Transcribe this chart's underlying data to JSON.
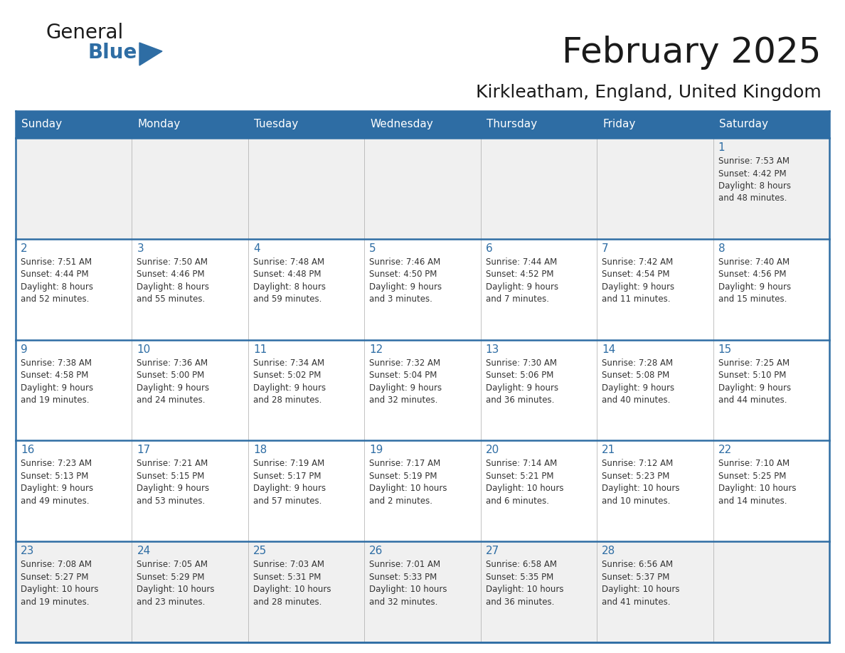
{
  "title": "February 2025",
  "subtitle": "Kirkleatham, England, United Kingdom",
  "header_bg": "#2E6DA4",
  "header_text_color": "#FFFFFF",
  "cell_bg_white": "#FFFFFF",
  "cell_bg_gray": "#F0F0F0",
  "day_number_color": "#2E6DA4",
  "info_text_color": "#333333",
  "border_color": "#2E6DA4",
  "grid_line_color": "#AAAAAA",
  "days_of_week": [
    "Sunday",
    "Monday",
    "Tuesday",
    "Wednesday",
    "Thursday",
    "Friday",
    "Saturday"
  ],
  "weeks": [
    [
      {
        "day": null,
        "info": ""
      },
      {
        "day": null,
        "info": ""
      },
      {
        "day": null,
        "info": ""
      },
      {
        "day": null,
        "info": ""
      },
      {
        "day": null,
        "info": ""
      },
      {
        "day": null,
        "info": ""
      },
      {
        "day": 1,
        "info": "Sunrise: 7:53 AM\nSunset: 4:42 PM\nDaylight: 8 hours\nand 48 minutes."
      }
    ],
    [
      {
        "day": 2,
        "info": "Sunrise: 7:51 AM\nSunset: 4:44 PM\nDaylight: 8 hours\nand 52 minutes."
      },
      {
        "day": 3,
        "info": "Sunrise: 7:50 AM\nSunset: 4:46 PM\nDaylight: 8 hours\nand 55 minutes."
      },
      {
        "day": 4,
        "info": "Sunrise: 7:48 AM\nSunset: 4:48 PM\nDaylight: 8 hours\nand 59 minutes."
      },
      {
        "day": 5,
        "info": "Sunrise: 7:46 AM\nSunset: 4:50 PM\nDaylight: 9 hours\nand 3 minutes."
      },
      {
        "day": 6,
        "info": "Sunrise: 7:44 AM\nSunset: 4:52 PM\nDaylight: 9 hours\nand 7 minutes."
      },
      {
        "day": 7,
        "info": "Sunrise: 7:42 AM\nSunset: 4:54 PM\nDaylight: 9 hours\nand 11 minutes."
      },
      {
        "day": 8,
        "info": "Sunrise: 7:40 AM\nSunset: 4:56 PM\nDaylight: 9 hours\nand 15 minutes."
      }
    ],
    [
      {
        "day": 9,
        "info": "Sunrise: 7:38 AM\nSunset: 4:58 PM\nDaylight: 9 hours\nand 19 minutes."
      },
      {
        "day": 10,
        "info": "Sunrise: 7:36 AM\nSunset: 5:00 PM\nDaylight: 9 hours\nand 24 minutes."
      },
      {
        "day": 11,
        "info": "Sunrise: 7:34 AM\nSunset: 5:02 PM\nDaylight: 9 hours\nand 28 minutes."
      },
      {
        "day": 12,
        "info": "Sunrise: 7:32 AM\nSunset: 5:04 PM\nDaylight: 9 hours\nand 32 minutes."
      },
      {
        "day": 13,
        "info": "Sunrise: 7:30 AM\nSunset: 5:06 PM\nDaylight: 9 hours\nand 36 minutes."
      },
      {
        "day": 14,
        "info": "Sunrise: 7:28 AM\nSunset: 5:08 PM\nDaylight: 9 hours\nand 40 minutes."
      },
      {
        "day": 15,
        "info": "Sunrise: 7:25 AM\nSunset: 5:10 PM\nDaylight: 9 hours\nand 44 minutes."
      }
    ],
    [
      {
        "day": 16,
        "info": "Sunrise: 7:23 AM\nSunset: 5:13 PM\nDaylight: 9 hours\nand 49 minutes."
      },
      {
        "day": 17,
        "info": "Sunrise: 7:21 AM\nSunset: 5:15 PM\nDaylight: 9 hours\nand 53 minutes."
      },
      {
        "day": 18,
        "info": "Sunrise: 7:19 AM\nSunset: 5:17 PM\nDaylight: 9 hours\nand 57 minutes."
      },
      {
        "day": 19,
        "info": "Sunrise: 7:17 AM\nSunset: 5:19 PM\nDaylight: 10 hours\nand 2 minutes."
      },
      {
        "day": 20,
        "info": "Sunrise: 7:14 AM\nSunset: 5:21 PM\nDaylight: 10 hours\nand 6 minutes."
      },
      {
        "day": 21,
        "info": "Sunrise: 7:12 AM\nSunset: 5:23 PM\nDaylight: 10 hours\nand 10 minutes."
      },
      {
        "day": 22,
        "info": "Sunrise: 7:10 AM\nSunset: 5:25 PM\nDaylight: 10 hours\nand 14 minutes."
      }
    ],
    [
      {
        "day": 23,
        "info": "Sunrise: 7:08 AM\nSunset: 5:27 PM\nDaylight: 10 hours\nand 19 minutes."
      },
      {
        "day": 24,
        "info": "Sunrise: 7:05 AM\nSunset: 5:29 PM\nDaylight: 10 hours\nand 23 minutes."
      },
      {
        "day": 25,
        "info": "Sunrise: 7:03 AM\nSunset: 5:31 PM\nDaylight: 10 hours\nand 28 minutes."
      },
      {
        "day": 26,
        "info": "Sunrise: 7:01 AM\nSunset: 5:33 PM\nDaylight: 10 hours\nand 32 minutes."
      },
      {
        "day": 27,
        "info": "Sunrise: 6:58 AM\nSunset: 5:35 PM\nDaylight: 10 hours\nand 36 minutes."
      },
      {
        "day": 28,
        "info": "Sunrise: 6:56 AM\nSunset: 5:37 PM\nDaylight: 10 hours\nand 41 minutes."
      },
      {
        "day": null,
        "info": ""
      }
    ]
  ],
  "logo_text_general": "General",
  "logo_text_blue": "Blue",
  "logo_color_general": "#1a1a1a",
  "logo_color_blue": "#2E6DA4",
  "logo_triangle_color": "#2E6DA4",
  "title_fontsize": 36,
  "subtitle_fontsize": 18,
  "header_fontsize": 11,
  "day_num_fontsize": 11,
  "info_fontsize": 8.5
}
